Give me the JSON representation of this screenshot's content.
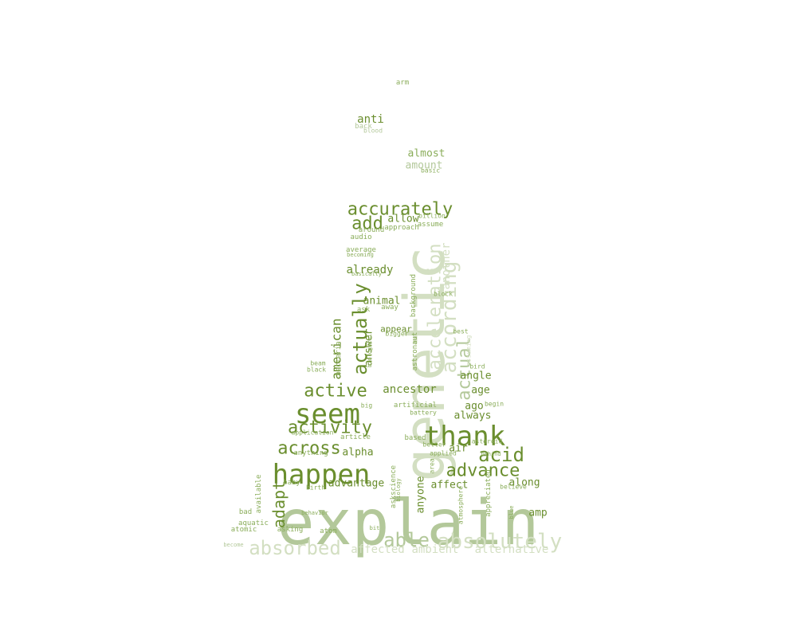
{
  "palette": {
    "dark": "#6a8e2e",
    "mid": "#8aad5a",
    "light": "#b3c89a",
    "pale": "#d3dfc2"
  },
  "words": [
    {
      "text": "explain",
      "shade": "light"
    },
    {
      "text": "genetic",
      "shade": "pale"
    },
    {
      "text": "thank",
      "shade": "dark"
    },
    {
      "text": "seem",
      "shade": "dark"
    },
    {
      "text": "happen",
      "shade": "dark"
    },
    {
      "text": "absolutely",
      "shade": "pale"
    },
    {
      "text": "absorbed",
      "shade": "pale"
    },
    {
      "text": "able",
      "shade": "light"
    },
    {
      "text": "accurately",
      "shade": "dark"
    },
    {
      "text": "acceleration",
      "shade": "pale"
    },
    {
      "text": "according",
      "shade": "pale"
    },
    {
      "text": "actually",
      "shade": "dark"
    },
    {
      "text": "active",
      "shade": "dark"
    },
    {
      "text": "activity",
      "shade": "dark"
    },
    {
      "text": "across",
      "shade": "dark"
    },
    {
      "text": "advance",
      "shade": "dark"
    },
    {
      "text": "acid",
      "shade": "dark"
    },
    {
      "text": "add",
      "shade": "dark"
    },
    {
      "text": "actual",
      "shade": "light"
    },
    {
      "text": "adapt",
      "shade": "dark"
    },
    {
      "text": "another",
      "shade": "pale"
    },
    {
      "text": "affected",
      "shade": "pale"
    },
    {
      "text": "ambient",
      "shade": "pale"
    },
    {
      "text": "alternative",
      "shade": "pale"
    },
    {
      "text": "american",
      "shade": "dark"
    },
    {
      "text": "anti",
      "shade": "dark"
    },
    {
      "text": "almost",
      "shade": "mid"
    },
    {
      "text": "amount",
      "shade": "light"
    },
    {
      "text": "already",
      "shade": "dark"
    },
    {
      "text": "ancestor",
      "shade": "dark"
    },
    {
      "text": "animal",
      "shade": "dark"
    },
    {
      "text": "allow",
      "shade": "dark"
    },
    {
      "text": "answer",
      "shade": "dark"
    },
    {
      "text": "anyone",
      "shade": "dark"
    },
    {
      "text": "affect",
      "shade": "dark"
    },
    {
      "text": "along",
      "shade": "dark"
    },
    {
      "text": "advantage",
      "shade": "dark"
    },
    {
      "text": "alpha",
      "shade": "dark"
    },
    {
      "text": "air",
      "shade": "dark"
    },
    {
      "text": "angle",
      "shade": "dark"
    },
    {
      "text": "age",
      "shade": "dark"
    },
    {
      "text": "ago",
      "shade": "dark"
    },
    {
      "text": "always",
      "shade": "dark"
    },
    {
      "text": "amp",
      "shade": "dark"
    },
    {
      "text": "appear",
      "shade": "dark"
    },
    {
      "text": "arm",
      "shade": "mid"
    },
    {
      "text": "back",
      "shade": "light"
    },
    {
      "text": "blood",
      "shade": "light"
    },
    {
      "text": "basic",
      "shade": "mid"
    },
    {
      "text": "billion",
      "shade": "mid"
    },
    {
      "text": "assume",
      "shade": "mid"
    },
    {
      "text": "around",
      "shade": "mid"
    },
    {
      "text": "approach",
      "shade": "mid"
    },
    {
      "text": "audio",
      "shade": "mid"
    },
    {
      "text": "average",
      "shade": "mid"
    },
    {
      "text": "becoming",
      "shade": "mid"
    },
    {
      "text": "basically",
      "shade": "mid"
    },
    {
      "text": "ask",
      "shade": "mid"
    },
    {
      "text": "away",
      "shade": "mid"
    },
    {
      "text": "background",
      "shade": "mid"
    },
    {
      "text": "block",
      "shade": "mid"
    },
    {
      "text": "bigger",
      "shade": "mid"
    },
    {
      "text": "best",
      "shade": "mid"
    },
    {
      "text": "assuming",
      "shade": "pale"
    },
    {
      "text": "biological",
      "shade": "mid"
    },
    {
      "text": "bacteria",
      "shade": "mid"
    },
    {
      "text": "astronaut",
      "shade": "mid"
    },
    {
      "text": "beam",
      "shade": "mid"
    },
    {
      "text": "black",
      "shade": "mid"
    },
    {
      "text": "bird",
      "shade": "mid"
    },
    {
      "text": "big",
      "shade": "mid"
    },
    {
      "text": "artificial",
      "shade": "mid"
    },
    {
      "text": "battery",
      "shade": "mid"
    },
    {
      "text": "begin",
      "shade": "mid"
    },
    {
      "text": "application",
      "shade": "mid"
    },
    {
      "text": "article",
      "shade": "mid"
    },
    {
      "text": "based",
      "shade": "mid"
    },
    {
      "text": "better",
      "shade": "mid"
    },
    {
      "text": "asteroid",
      "shade": "mid"
    },
    {
      "text": "anything",
      "shade": "mid"
    },
    {
      "text": "applied",
      "shade": "mid"
    },
    {
      "text": "behind",
      "shade": "mid"
    },
    {
      "text": "area",
      "shade": "mid"
    },
    {
      "text": "available",
      "shade": "mid"
    },
    {
      "text": "baby",
      "shade": "mid"
    },
    {
      "text": "birth",
      "shade": "mid"
    },
    {
      "text": "askscience",
      "shade": "mid"
    },
    {
      "text": "biology",
      "shade": "mid"
    },
    {
      "text": "believe",
      "shade": "mid"
    },
    {
      "text": "appreciated",
      "shade": "mid"
    },
    {
      "text": "atmosphere",
      "shade": "mid"
    },
    {
      "text": "bad",
      "shade": "mid"
    },
    {
      "text": "behavior",
      "shade": "mid"
    },
    {
      "text": "blue",
      "shade": "mid"
    },
    {
      "text": "aquatic",
      "shade": "mid"
    },
    {
      "text": "asking",
      "shade": "mid"
    },
    {
      "text": "bit",
      "shade": "mid"
    },
    {
      "text": "atomic",
      "shade": "mid"
    },
    {
      "text": "atom",
      "shade": "mid"
    },
    {
      "text": "become",
      "shade": "light"
    }
  ]
}
